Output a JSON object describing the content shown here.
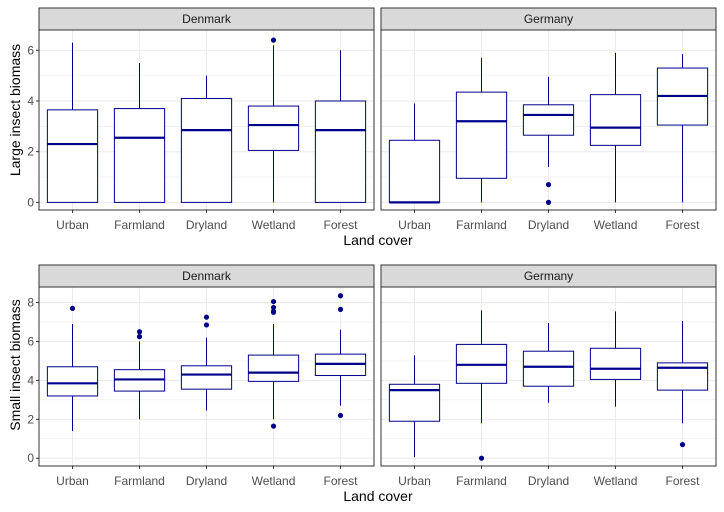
{
  "colors": {
    "box": "#00008b",
    "strip_fill": "#d9d9d9",
    "panel_border": "#333333",
    "grid": "#ebebeb"
  },
  "chart_data": [
    {
      "type": "boxplot",
      "facet": "Denmark",
      "xlabel": "Land cover",
      "ylabel": "Large insect biomass",
      "categories": [
        "Urban",
        "Farmland",
        "Dryland",
        "Wetland",
        "Forest"
      ],
      "yticks": [
        0,
        2,
        4,
        6
      ],
      "ylim": [
        -0.3,
        6.8
      ],
      "boxes": [
        {
          "category": "Urban",
          "min": 0,
          "q1": 0,
          "median": 2.3,
          "q3": 3.65,
          "max": 6.3,
          "outliers": []
        },
        {
          "category": "Farmland",
          "min": 0,
          "q1": 0,
          "median": 2.55,
          "q3": 3.7,
          "max": 5.5,
          "outliers": []
        },
        {
          "category": "Dryland",
          "min": 0,
          "q1": 0,
          "median": 2.85,
          "q3": 4.1,
          "max": 5.0,
          "outliers": []
        },
        {
          "category": "Wetland",
          "min": 0,
          "q1": 2.05,
          "median": 3.05,
          "q3": 3.8,
          "max": 6.2,
          "outliers": [
            6.4
          ]
        },
        {
          "category": "Forest",
          "min": 0,
          "q1": 0,
          "median": 2.85,
          "q3": 4.0,
          "max": 6.0,
          "outliers": []
        }
      ]
    },
    {
      "type": "boxplot",
      "facet": "Germany",
      "xlabel": "Land cover",
      "ylabel": "Large insect biomass",
      "categories": [
        "Urban",
        "Farmland",
        "Dryland",
        "Wetland",
        "Forest"
      ],
      "yticks": [
        0,
        2,
        4,
        6
      ],
      "ylim": [
        -0.3,
        6.8
      ],
      "boxes": [
        {
          "category": "Urban",
          "min": 0,
          "q1": 0,
          "median": 0,
          "q3": 2.45,
          "max": 3.9,
          "outliers": []
        },
        {
          "category": "Farmland",
          "min": 0,
          "q1": 0.95,
          "median": 3.2,
          "q3": 4.35,
          "max": 5.7,
          "outliers": []
        },
        {
          "category": "Dryland",
          "min": 1.4,
          "q1": 2.65,
          "median": 3.45,
          "q3": 3.85,
          "max": 4.95,
          "outliers": [
            0.7,
            0.0
          ]
        },
        {
          "category": "Wetland",
          "min": 0,
          "q1": 2.25,
          "median": 2.95,
          "q3": 4.25,
          "max": 5.9,
          "outliers": []
        },
        {
          "category": "Forest",
          "min": 0,
          "q1": 3.05,
          "median": 4.2,
          "q3": 5.3,
          "max": 5.85,
          "outliers": []
        }
      ]
    },
    {
      "type": "boxplot",
      "facet": "Denmark",
      "xlabel": "Land cover",
      "ylabel": "Small insect biomass",
      "categories": [
        "Urban",
        "Farmland",
        "Dryland",
        "Wetland",
        "Forest"
      ],
      "yticks": [
        0,
        2,
        4,
        6,
        8
      ],
      "ylim": [
        -0.4,
        8.8
      ],
      "boxes": [
        {
          "category": "Urban",
          "min": 1.4,
          "q1": 3.2,
          "median": 3.85,
          "q3": 4.7,
          "max": 6.9,
          "outliers": [
            7.7
          ]
        },
        {
          "category": "Farmland",
          "min": 2.0,
          "q1": 3.45,
          "median": 4.05,
          "q3": 4.55,
          "max": 6.0,
          "outliers": [
            6.5,
            6.25
          ]
        },
        {
          "category": "Dryland",
          "min": 2.45,
          "q1": 3.55,
          "median": 4.3,
          "q3": 4.75,
          "max": 6.2,
          "outliers": [
            7.25,
            6.85
          ]
        },
        {
          "category": "Wetland",
          "min": 2.0,
          "q1": 3.95,
          "median": 4.4,
          "q3": 5.3,
          "max": 6.9,
          "outliers": [
            8.05,
            7.75,
            7.55,
            7.5,
            1.65
          ]
        },
        {
          "category": "Forest",
          "min": 2.7,
          "q1": 4.25,
          "median": 4.85,
          "q3": 5.35,
          "max": 6.6,
          "outliers": [
            8.35,
            7.65,
            2.2
          ]
        }
      ]
    },
    {
      "type": "boxplot",
      "facet": "Germany",
      "xlabel": "Land cover",
      "ylabel": "Small insect biomass",
      "categories": [
        "Urban",
        "Farmland",
        "Dryland",
        "Wetland",
        "Forest"
      ],
      "yticks": [
        0,
        2,
        4,
        6,
        8
      ],
      "ylim": [
        -0.4,
        8.8
      ],
      "boxes": [
        {
          "category": "Urban",
          "min": 0.05,
          "q1": 1.9,
          "median": 3.5,
          "q3": 3.8,
          "max": 5.3,
          "outliers": []
        },
        {
          "category": "Farmland",
          "min": 1.8,
          "q1": 3.85,
          "median": 4.8,
          "q3": 5.85,
          "max": 7.6,
          "outliers": [
            0.0
          ]
        },
        {
          "category": "Dryland",
          "min": 2.85,
          "q1": 3.7,
          "median": 4.7,
          "q3": 5.5,
          "max": 6.95,
          "outliers": []
        },
        {
          "category": "Wetland",
          "min": 2.65,
          "q1": 4.05,
          "median": 4.6,
          "q3": 5.65,
          "max": 7.55,
          "outliers": []
        },
        {
          "category": "Forest",
          "min": 1.8,
          "q1": 3.5,
          "median": 4.65,
          "q3": 4.9,
          "max": 7.05,
          "outliers": [
            0.7
          ]
        }
      ]
    }
  ]
}
